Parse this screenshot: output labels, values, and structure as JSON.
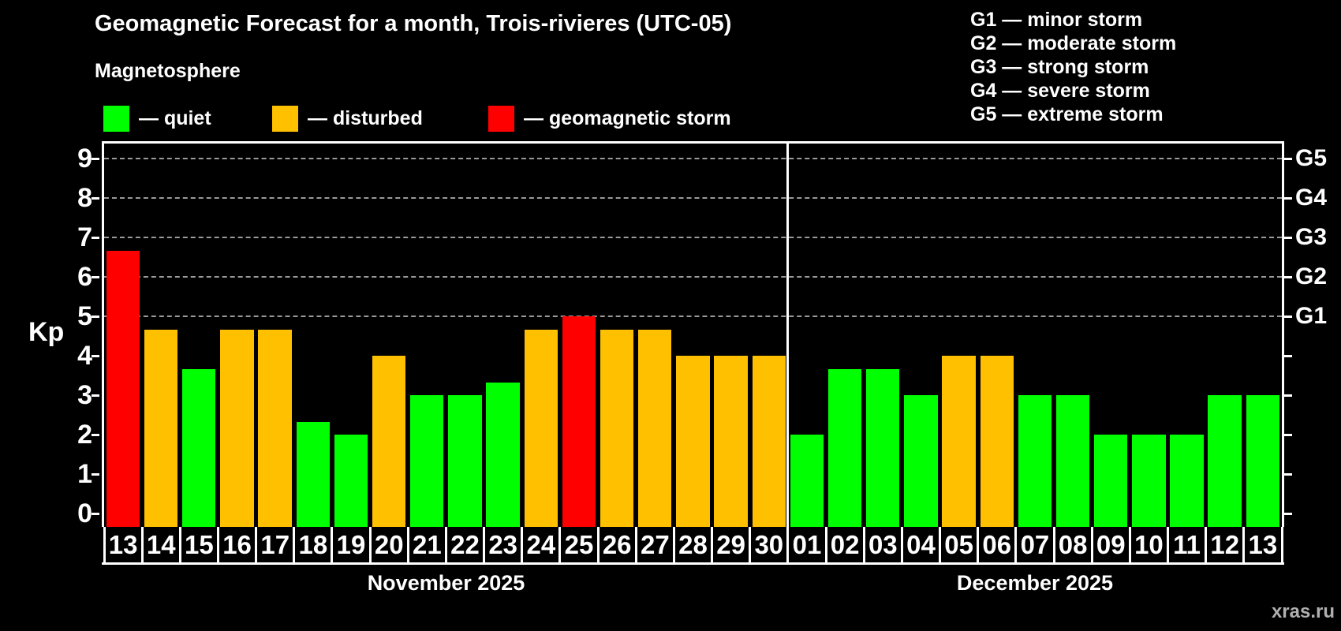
{
  "title": "Geomagnetic Forecast for a month, Trois-rivieres (UTC-05)",
  "subtitle": "Magnetosphere",
  "watermark": "xras.ru",
  "colors": {
    "quiet": "#00ff00",
    "disturbed": "#ffc000",
    "storm": "#ff0000",
    "grid": "#9a9a9a",
    "axis": "#ffffff",
    "background": "#000000"
  },
  "legend": {
    "items": [
      {
        "status": "quiet",
        "label": "— quiet"
      },
      {
        "status": "disturbed",
        "label": "— disturbed"
      },
      {
        "status": "storm",
        "label": "— geomagnetic storm"
      }
    ]
  },
  "storm_scale": {
    "lines": [
      "G1 — minor storm",
      "G2 — moderate storm",
      "G3 — strong storm",
      "G4 — severe storm",
      "G5 — extreme storm"
    ]
  },
  "axes": {
    "ylabel": "Kp",
    "left_ticks": [
      0,
      1,
      2,
      3,
      4,
      5,
      6,
      7,
      8,
      9
    ],
    "gridlines_at": [
      5,
      6,
      7,
      8,
      9
    ],
    "right_labels": [
      {
        "value": 5,
        "label": "G1"
      },
      {
        "value": 6,
        "label": "G2"
      },
      {
        "value": 7,
        "label": "G3"
      },
      {
        "value": 8,
        "label": "G4"
      },
      {
        "value": 9,
        "label": "G5"
      }
    ]
  },
  "chart_data": {
    "type": "bar",
    "ylabel": "Kp",
    "ylim": [
      0,
      9
    ],
    "grid": "horizontal dashed lines at Kp 5,6,7,8,9",
    "legend_position": "top-left",
    "months": [
      {
        "label": "November 2025",
        "days": [
          {
            "day": "13",
            "kp": 6.67,
            "status": "storm"
          },
          {
            "day": "14",
            "kp": 4.67,
            "status": "disturbed"
          },
          {
            "day": "15",
            "kp": 3.67,
            "status": "quiet"
          },
          {
            "day": "16",
            "kp": 4.67,
            "status": "disturbed"
          },
          {
            "day": "17",
            "kp": 4.67,
            "status": "disturbed"
          },
          {
            "day": "18",
            "kp": 2.33,
            "status": "quiet"
          },
          {
            "day": "19",
            "kp": 2.0,
            "status": "quiet"
          },
          {
            "day": "20",
            "kp": 4.0,
            "status": "disturbed"
          },
          {
            "day": "21",
            "kp": 3.0,
            "status": "quiet"
          },
          {
            "day": "22",
            "kp": 3.0,
            "status": "quiet"
          },
          {
            "day": "23",
            "kp": 3.33,
            "status": "quiet"
          },
          {
            "day": "24",
            "kp": 4.67,
            "status": "disturbed"
          },
          {
            "day": "25",
            "kp": 5.0,
            "status": "storm"
          },
          {
            "day": "26",
            "kp": 4.67,
            "status": "disturbed"
          },
          {
            "day": "27",
            "kp": 4.67,
            "status": "disturbed"
          },
          {
            "day": "28",
            "kp": 4.0,
            "status": "disturbed"
          },
          {
            "day": "29",
            "kp": 4.0,
            "status": "disturbed"
          },
          {
            "day": "30",
            "kp": 4.0,
            "status": "disturbed"
          }
        ]
      },
      {
        "label": "December 2025",
        "days": [
          {
            "day": "01",
            "kp": 2.0,
            "status": "quiet"
          },
          {
            "day": "02",
            "kp": 3.67,
            "status": "quiet"
          },
          {
            "day": "03",
            "kp": 3.67,
            "status": "quiet"
          },
          {
            "day": "04",
            "kp": 3.0,
            "status": "quiet"
          },
          {
            "day": "05",
            "kp": 4.0,
            "status": "disturbed"
          },
          {
            "day": "06",
            "kp": 4.0,
            "status": "disturbed"
          },
          {
            "day": "07",
            "kp": 3.0,
            "status": "quiet"
          },
          {
            "day": "08",
            "kp": 3.0,
            "status": "quiet"
          },
          {
            "day": "09",
            "kp": 2.0,
            "status": "quiet"
          },
          {
            "day": "10",
            "kp": 2.0,
            "status": "quiet"
          },
          {
            "day": "11",
            "kp": 2.0,
            "status": "quiet"
          },
          {
            "day": "12",
            "kp": 3.0,
            "status": "quiet"
          },
          {
            "day": "13",
            "kp": 3.0,
            "status": "quiet"
          }
        ]
      }
    ]
  }
}
